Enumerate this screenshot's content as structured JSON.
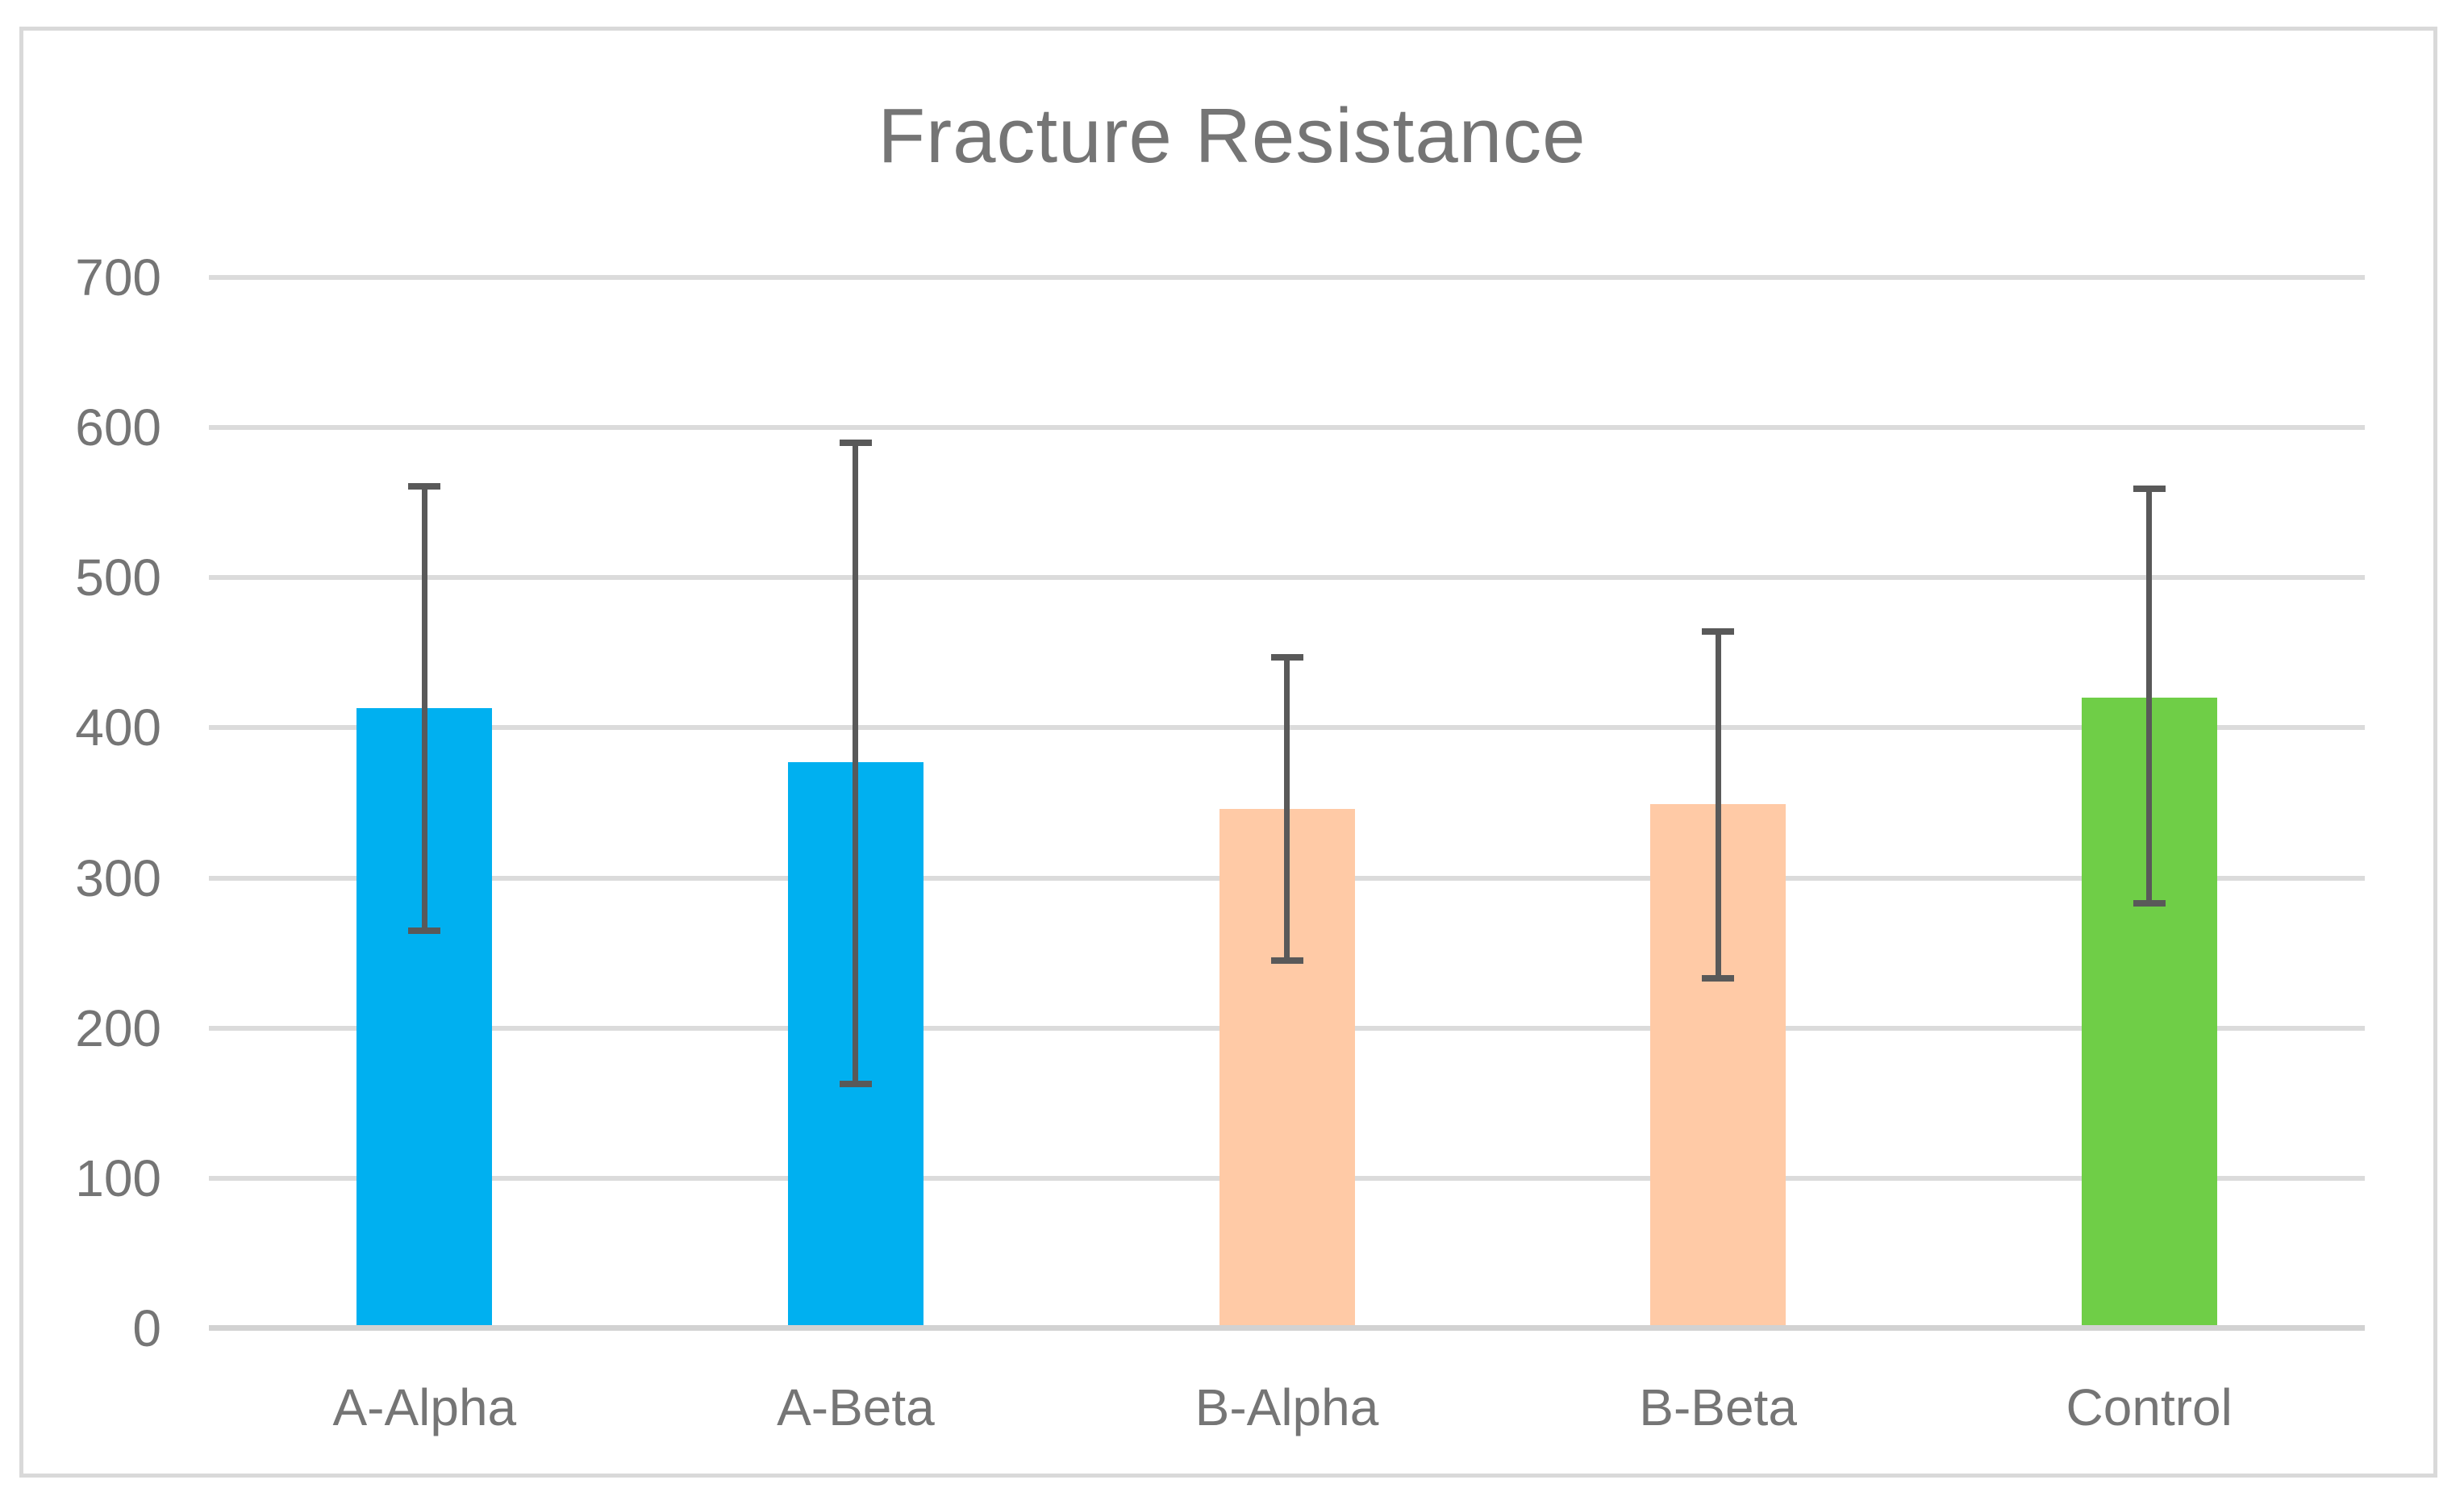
{
  "chart_data": {
    "type": "bar",
    "title": "Fracture Resistance",
    "categories": [
      "A-Alpha",
      "A-Beta",
      "B-Alpha",
      "B-Beta",
      "Control"
    ],
    "values": [
      413,
      377,
      346,
      349,
      420
    ],
    "error_bars": [
      {
        "low": 265,
        "high": 561
      },
      {
        "low": 163,
        "high": 590
      },
      {
        "low": 245,
        "high": 447
      },
      {
        "low": 233,
        "high": 464
      },
      {
        "low": 283,
        "high": 559
      }
    ],
    "bar_colors": [
      "#00B0F0",
      "#00B0F0",
      "#FFCAA6",
      "#FFCAA6",
      "#6FCE47"
    ],
    "xlabel": "",
    "ylabel": "",
    "ylim": [
      0,
      700
    ],
    "yticks": [
      0,
      100,
      200,
      300,
      400,
      500,
      600,
      700
    ],
    "grid": true,
    "legend": false
  },
  "colors": {
    "accent_blue": "#00B0F0",
    "accent_peach": "#FFCAA6",
    "accent_green": "#6FCE47",
    "error_bar": "#595959",
    "gridline": "#DBDBDB",
    "axis_line": "#D2D2D2",
    "text": "#757575",
    "frame_border": "#D9D9D9",
    "background": "#FFFFFF"
  }
}
